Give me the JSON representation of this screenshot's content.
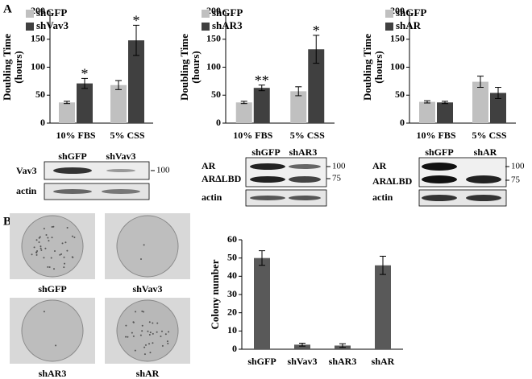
{
  "panels": [
    "A",
    "B"
  ],
  "chart_data": [
    {
      "type": "bar",
      "ylabel": [
        "Doubling Time",
        "(hours)"
      ],
      "categories": [
        "10% FBS",
        "5% CSS"
      ],
      "series": [
        {
          "name": "shGFP",
          "color": "#c0c0c0",
          "values": [
            37,
            68
          ],
          "errors": [
            2,
            8
          ]
        },
        {
          "name": "shVav3",
          "color": "#404040",
          "values": [
            71,
            148
          ],
          "errors": [
            9,
            27
          ],
          "markers": [
            "*",
            "*"
          ]
        }
      ],
      "ylim": [
        0,
        200
      ],
      "yticks": [
        0,
        50,
        100,
        150,
        200
      ],
      "legend": "upper left"
    },
    {
      "type": "bar",
      "ylabel": [
        "Doubling Time",
        "(hours)"
      ],
      "categories": [
        "10% FBS",
        "5% CSS"
      ],
      "series": [
        {
          "name": "shGFP",
          "color": "#c0c0c0",
          "values": [
            37,
            57
          ],
          "errors": [
            2,
            8
          ]
        },
        {
          "name": "shAR3",
          "color": "#404040",
          "values": [
            63,
            132
          ],
          "errors": [
            5,
            25
          ],
          "markers": [
            "**",
            "*"
          ]
        }
      ],
      "ylim": [
        0,
        200
      ],
      "yticks": [
        0,
        50,
        100,
        150,
        200
      ],
      "legend": "upper left"
    },
    {
      "type": "bar",
      "ylabel": [
        "Doubling Time",
        "(hours)"
      ],
      "categories": [
        "10% FBS",
        "5% CSS"
      ],
      "series": [
        {
          "name": "shGFP",
          "color": "#c0c0c0",
          "values": [
            38,
            74
          ],
          "errors": [
            2,
            10
          ]
        },
        {
          "name": "shAR",
          "color": "#404040",
          "values": [
            37,
            54
          ],
          "errors": [
            2,
            10
          ]
        }
      ],
      "ylim": [
        0,
        200
      ],
      "yticks": [
        0,
        50,
        100,
        150,
        200
      ],
      "legend": "upper left"
    },
    {
      "type": "bar",
      "ylabel": [
        "Colony number"
      ],
      "categories": [
        "shGFP",
        "shVav3",
        "shAR3",
        "shAR"
      ],
      "series": [
        {
          "color": "#595959",
          "values": [
            50,
            2.5,
            2,
            46
          ],
          "errors": [
            4,
            0.8,
            1,
            5
          ]
        }
      ],
      "ylim": [
        0,
        60
      ],
      "yticks": [
        0,
        10,
        20,
        30,
        40,
        50,
        60
      ]
    }
  ],
  "blots": [
    {
      "lanes": [
        "shGFP",
        "shVav3"
      ],
      "rows": [
        "Vav3",
        "actin"
      ],
      "markers": [
        "100"
      ]
    },
    {
      "lanes": [
        "shGFP",
        "shAR3"
      ],
      "rows": [
        "AR",
        "AR∆LBD",
        "actin"
      ],
      "markers": [
        "100",
        "75"
      ]
    },
    {
      "lanes": [
        "shGFP",
        "shAR"
      ],
      "rows": [
        "AR",
        "AR∆LBD",
        "actin"
      ],
      "markers": [
        "100",
        "75"
      ]
    }
  ],
  "plates": [
    "shGFP",
    "shVav3",
    "shAR3",
    "shAR"
  ]
}
